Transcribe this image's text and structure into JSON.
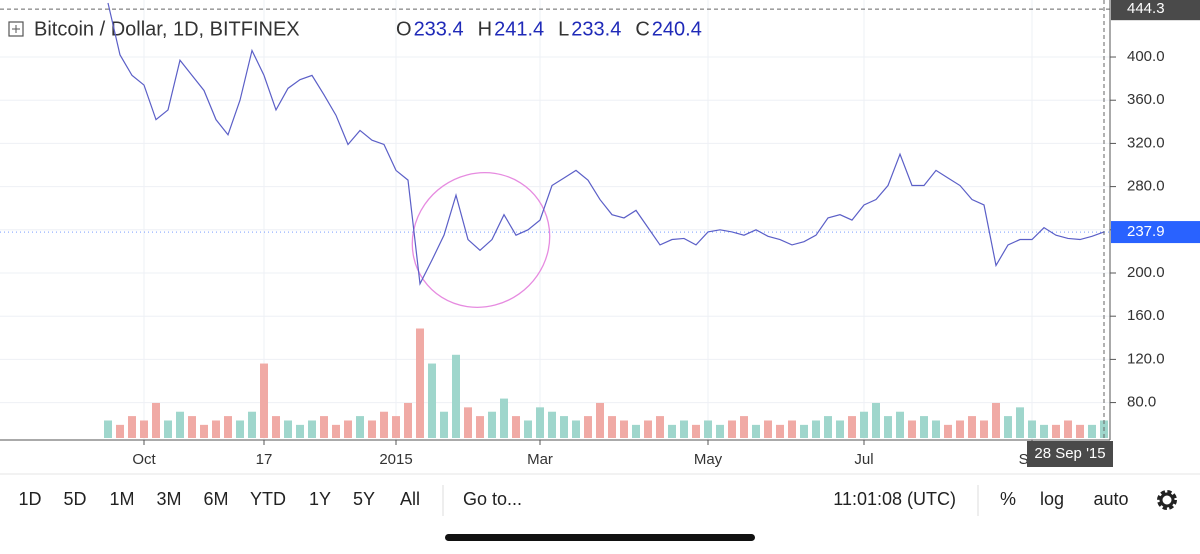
{
  "chart_data": {
    "type": "line",
    "title": "Bitcoin / Dollar, 1D, BITFINEX",
    "ohlc": [
      {
        "label": "O",
        "value": "233.4"
      },
      {
        "label": "H",
        "value": "241.4"
      },
      {
        "label": "L",
        "value": "233.4"
      },
      {
        "label": "C",
        "value": "240.4"
      }
    ],
    "categories": [
      null,
      null,
      null,
      "Oct",
      null,
      null,
      null,
      null,
      null,
      null,
      null,
      null,
      null,
      "17",
      null,
      null,
      null,
      null,
      null,
      null,
      null,
      null,
      null,
      null,
      "2015",
      null,
      null,
      null,
      null,
      null,
      null,
      null,
      null,
      null,
      null,
      null,
      "Mar",
      null,
      null,
      null,
      null,
      null,
      null,
      null,
      null,
      null,
      null,
      null,
      null,
      null,
      "May",
      null,
      null,
      null,
      null,
      null,
      null,
      null,
      null,
      null,
      null,
      null,
      null,
      "Jul",
      null,
      null,
      null,
      null,
      null,
      null,
      null,
      null,
      null,
      null,
      null,
      null,
      null,
      "Sep",
      null,
      null,
      null,
      null,
      null,
      null
    ],
    "series": [
      {
        "color": "#5b5fc7",
        "values": [
          450,
          402,
          383,
          374,
          342,
          351,
          397,
          383,
          369,
          342,
          328,
          360,
          406,
          383,
          351,
          371,
          379,
          383,
          365,
          346,
          319,
          332,
          323,
          319,
          295,
          286,
          190,
          212,
          235,
          272,
          231,
          221,
          231,
          254,
          235,
          240,
          249,
          281,
          288,
          295,
          286,
          268,
          254,
          251,
          258,
          242,
          226,
          231,
          232,
          226,
          238,
          240,
          238,
          235,
          240,
          234,
          231,
          226,
          229,
          235,
          251,
          254,
          249,
          263,
          268,
          281,
          310,
          281,
          281,
          295,
          288,
          281,
          268,
          263,
          207,
          226,
          231,
          231,
          242,
          235,
          232,
          231,
          234,
          238
        ]
      },
      {
        "type": "bar",
        "axis": "y2",
        "up_color": "#9fd6cc",
        "down_color": "#f0aaa5",
        "values": [
          4,
          3,
          5,
          4,
          8,
          4,
          6,
          5,
          3,
          4,
          5,
          4,
          6,
          17,
          5,
          4,
          3,
          4,
          5,
          3,
          4,
          5,
          4,
          6,
          5,
          8,
          25,
          17,
          6,
          19,
          7,
          5,
          6,
          9,
          5,
          4,
          7,
          6,
          5,
          4,
          5,
          8,
          5,
          4,
          3,
          4,
          5,
          3,
          4,
          3,
          4,
          3,
          4,
          5,
          3,
          4,
          3,
          4,
          3,
          4,
          5,
          4,
          5,
          6,
          8,
          5,
          6,
          4,
          5,
          4,
          3,
          4,
          5,
          4,
          8,
          5,
          7,
          4,
          3,
          3,
          4,
          3,
          3,
          4
        ]
      }
    ],
    "ylim": [
      47.2,
      452.8
    ],
    "yticks": [
      {
        "value": 80,
        "label": "80.0"
      },
      {
        "value": 120,
        "label": "120.0"
      },
      {
        "value": 160,
        "label": "160.0"
      },
      {
        "value": 200,
        "label": "200.0"
      },
      {
        "value": 240,
        "label": "240.0"
      },
      {
        "value": 280,
        "label": "280.0"
      },
      {
        "value": 320,
        "label": "320.0"
      },
      {
        "value": 360,
        "label": "360.0"
      },
      {
        "value": 400,
        "label": "400.0"
      }
    ],
    "y2lim": [
      0,
      100
    ],
    "grid": true,
    "crosshair_price": 444.3,
    "crosshair_date": "28 Sep '15",
    "last_price": 237.9,
    "last_price_color": "#2962ff"
  },
  "toolbar": {
    "intervals": [
      "1D",
      "5D",
      "1M",
      "3M",
      "6M",
      "YTD",
      "1Y",
      "5Y",
      "All"
    ],
    "goto": "Go to...",
    "time": "11:01:08 (UTC)",
    "options": [
      "%",
      "log",
      "auto"
    ]
  }
}
